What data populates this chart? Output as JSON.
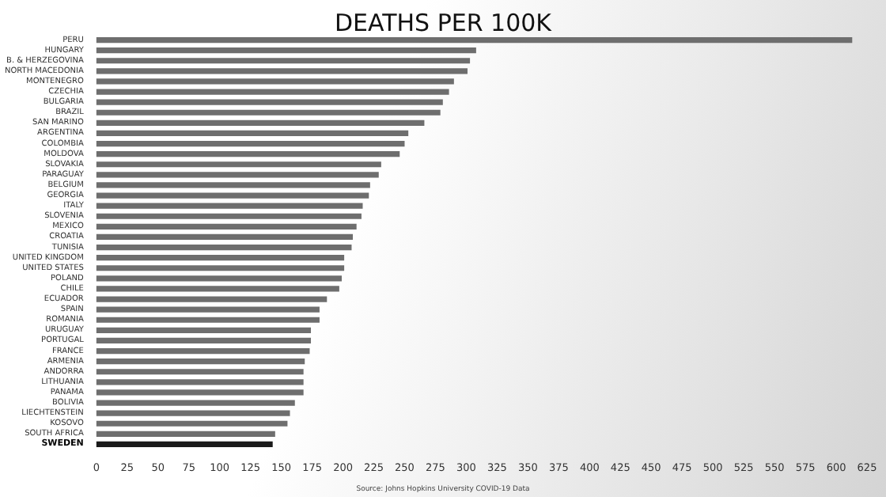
{
  "chart_data": {
    "type": "bar",
    "orientation": "horizontal",
    "title": "DEATHS PER 100K",
    "categories": [
      "PERU",
      "HUNGARY",
      "B. & HERZEGOVINA",
      "NORTH MACEDONIA",
      "MONTENEGRO",
      "CZECHIA",
      "BULGARIA",
      "BRAZIL",
      "SAN MARINO",
      "ARGENTINA",
      "COLOMBIA",
      "MOLDOVA",
      "SLOVAKIA",
      "PARAGUAY",
      "BELGIUM",
      "GEORGIA",
      "ITALY",
      "SLOVENIA",
      "MEXICO",
      "CROATIA",
      "TUNISIA",
      "UNITED KINGDOM",
      "UNITED STATES",
      "POLAND",
      "CHILE",
      "ECUADOR",
      "SPAIN",
      "ROMANIA",
      "URUGUAY",
      "PORTUGAL",
      "FRANCE",
      "ARMENIA",
      "ANDORRA",
      "LITHUANIA",
      "PANAMA",
      "BOLIVIA",
      "LIECHTENSTEIN",
      "KOSOVO",
      "SOUTH AFRICA",
      "SWEDEN"
    ],
    "values": [
      613,
      308,
      303,
      301,
      290,
      286,
      281,
      279,
      266,
      253,
      250,
      246,
      231,
      229,
      222,
      221,
      216,
      215,
      211,
      208,
      207,
      201,
      201,
      199,
      197,
      187,
      181,
      181,
      174,
      174,
      173,
      169,
      168,
      168,
      168,
      161,
      157,
      155,
      145,
      143
    ],
    "colors": [
      "#6e6e6e",
      "#6e6e6e",
      "#6e6e6e",
      "#6e6e6e",
      "#6e6e6e",
      "#6e6e6e",
      "#6e6e6e",
      "#6e6e6e",
      "#6e6e6e",
      "#6e6e6e",
      "#6e6e6e",
      "#6e6e6e",
      "#6e6e6e",
      "#6e6e6e",
      "#6e6e6e",
      "#6e6e6e",
      "#6e6e6e",
      "#6e6e6e",
      "#6e6e6e",
      "#6e6e6e",
      "#6e6e6e",
      "#6e6e6e",
      "#6e6e6e",
      "#6e6e6e",
      "#6e6e6e",
      "#6e6e6e",
      "#6e6e6e",
      "#6e6e6e",
      "#6e6e6e",
      "#6e6e6e",
      "#6e6e6e",
      "#6e6e6e",
      "#6e6e6e",
      "#6e6e6e",
      "#6e6e6e",
      "#6e6e6e",
      "#6e6e6e",
      "#6e6e6e",
      "#6e6e6e",
      "#1a1a1a"
    ],
    "xlim": [
      0,
      625
    ],
    "xticks": [
      0,
      25,
      50,
      75,
      100,
      125,
      150,
      175,
      200,
      225,
      250,
      275,
      300,
      325,
      350,
      375,
      400,
      425,
      450,
      475,
      500,
      525,
      550,
      575,
      600,
      625
    ],
    "annotations": [
      "Source: Johns Hopkins University COVID-19 Data"
    ]
  }
}
